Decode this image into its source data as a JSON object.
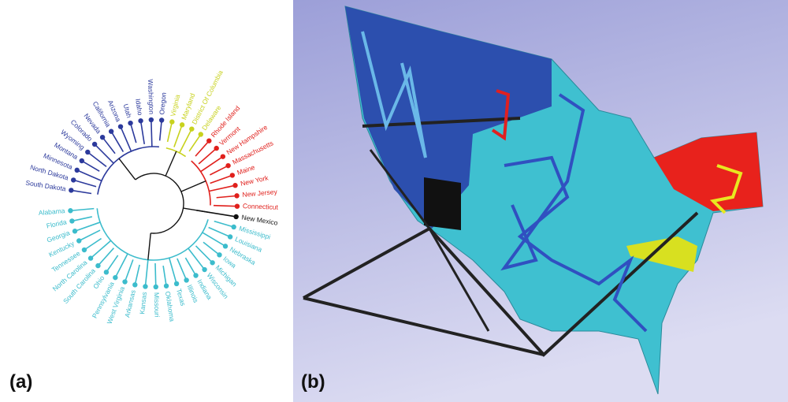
{
  "panel_a": {
    "label": "(a)",
    "clusters": [
      {
        "color": "#2c3a9c",
        "leaves": [
          "South Dakota",
          "North Dakota",
          "Minnesota",
          "Montana",
          "Wyoming",
          "Colorado",
          "Nevada",
          "California",
          "Arizona",
          "Utah",
          "Idaho",
          "Washington",
          "Oregon"
        ]
      },
      {
        "color": "#c8d21e",
        "leaves": [
          "Virginia",
          "Maryland",
          "District Of Columbia",
          "Delaware"
        ]
      },
      {
        "color": "#e0201c",
        "leaves": [
          "Rhode Island",
          "Vermont",
          "New Hampshire",
          "Massachusetts",
          "Maine",
          "New York",
          "New Jersey",
          "Connecticut"
        ]
      },
      {
        "color": "#111111",
        "leaves": [
          "New Mexico"
        ]
      },
      {
        "color": "#3cbccc",
        "leaves": [
          "Mississippi",
          "Louisiana",
          "Nebraska",
          "Iowa",
          "Michigan",
          "Wisconsin",
          "Indiana",
          "Illinois",
          "Texas",
          "Oklahoma",
          "Missouri",
          "Kansas",
          "Arkansas",
          "West Virginia",
          "Pennsylvania",
          "Ohio",
          "South Carolina",
          "North Carolina",
          "Tennessee",
          "Kentucky",
          "Georgia",
          "Florida",
          "Alabama"
        ]
      }
    ]
  },
  "panel_b": {
    "label": "(b)"
  }
}
